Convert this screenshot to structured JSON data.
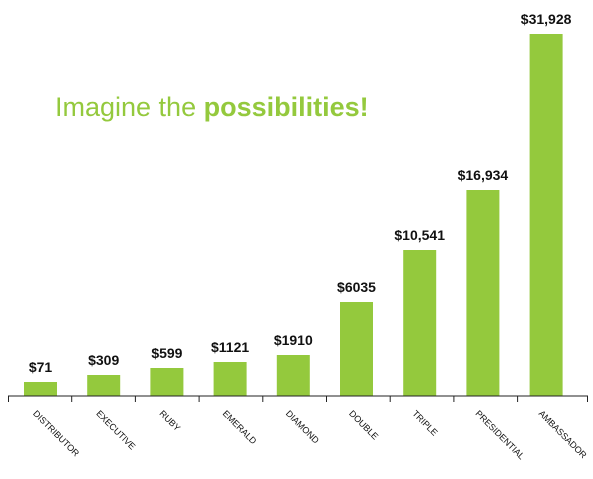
{
  "headline": {
    "normal": "Imagine the ",
    "bold": "possibilities!"
  },
  "colors": {
    "bar": "#94c93d",
    "axis": "#222222",
    "label": "#111111",
    "headline": "#94c93d"
  },
  "chart_data": {
    "type": "bar",
    "categories": [
      "DISTRIBUTOR",
      "EXECUTIVE",
      "RUBY",
      "EMERALD",
      "DIAMOND",
      "DOUBLE",
      "TRIPLE",
      "PRESIDENTIAL",
      "AMBASSADOR"
    ],
    "values": [
      71,
      309,
      599,
      1121,
      1910,
      6035,
      10541,
      16934,
      31928
    ],
    "data_labels": [
      "$71",
      "$309",
      "$599",
      "$1121",
      "$1910",
      "$6035",
      "$10,541",
      "$16,934",
      "$31,928"
    ],
    "title": "",
    "xlabel": "",
    "ylabel": "",
    "grid": false,
    "legend": "none"
  }
}
